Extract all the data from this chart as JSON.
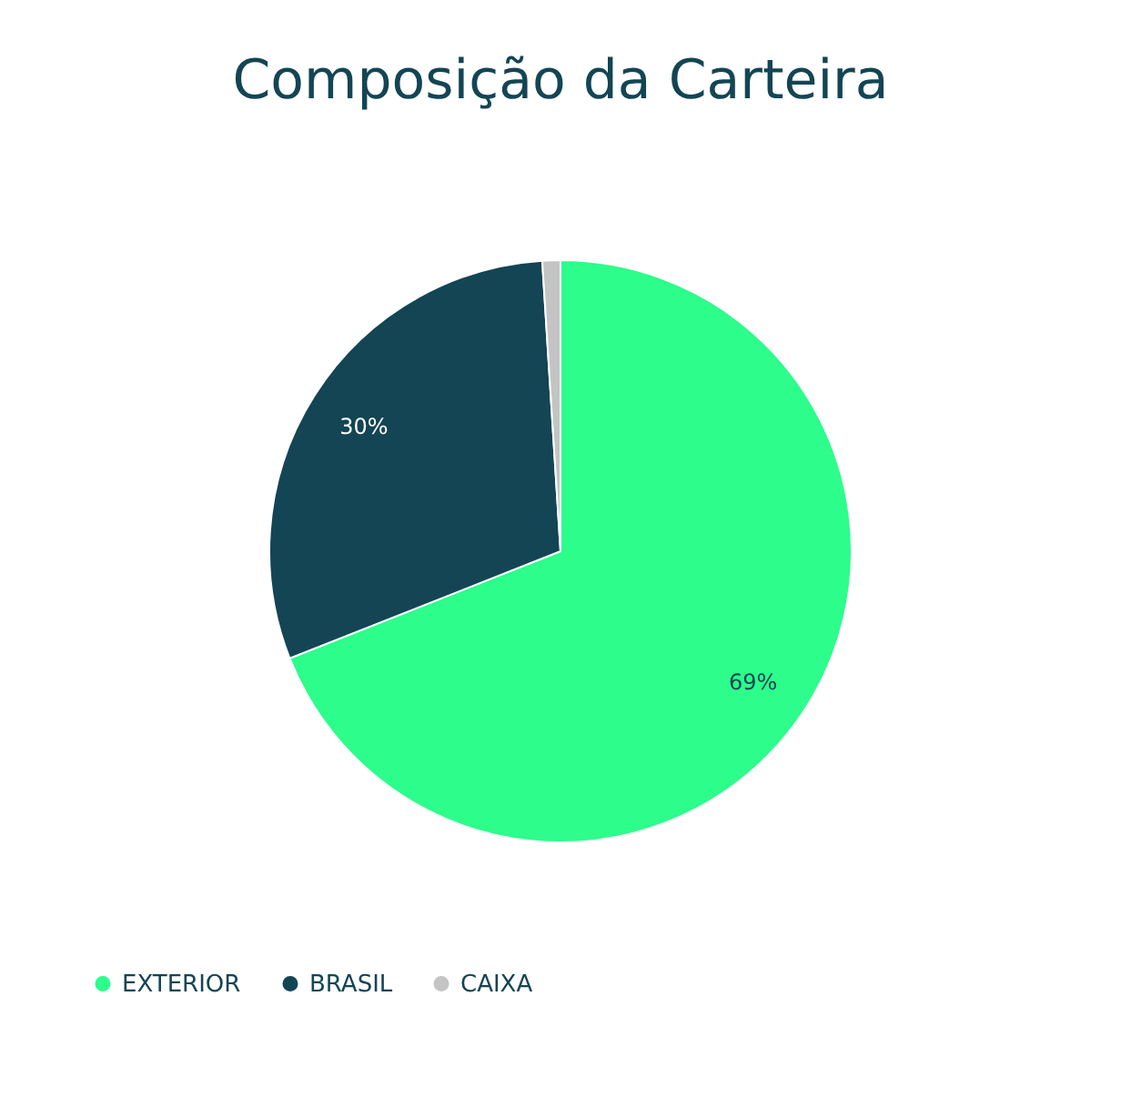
{
  "chart_data": {
    "type": "pie",
    "title": "Composição da Carteira",
    "categories": [
      "EXTERIOR",
      "BRASIL",
      "CAIXA"
    ],
    "values": [
      69,
      30,
      1
    ],
    "colors": [
      "#2cfd8b",
      "#134554",
      "#c4c4c4"
    ],
    "value_labels": [
      "69%",
      "30%",
      null
    ],
    "legend": "bottom"
  }
}
